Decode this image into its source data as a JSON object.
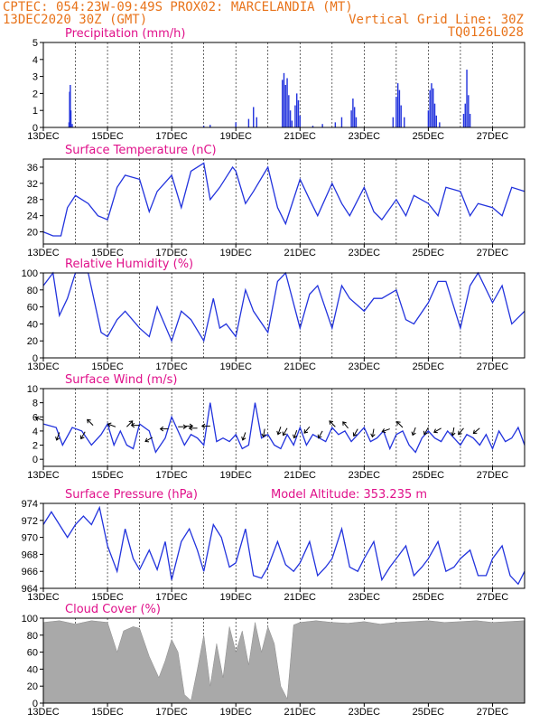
{
  "header": {
    "line1": "CPTEC:  054:23W-09:49S  PROX02: MARCELANDIA (MT)",
    "line2_left": "13DEC2020 30Z (GMT)",
    "line2_right": "Vertical Grid Line: 30Z",
    "line3_right": "TQ0126L028"
  },
  "colors": {
    "header": "#e8731a",
    "title": "#e0108a",
    "line": "#2233dd",
    "bar": "#2233dd",
    "cloud": "#a9a9a9"
  },
  "date_labels": [
    "13DEC",
    "15DEC",
    "17DEC",
    "19DEC",
    "21DEC",
    "23DEC",
    "25DEC",
    "27DEC"
  ],
  "model_altitude": "Model Altitude: 353.235 m",
  "panels": [
    {
      "id": "precip",
      "title": "Precipitation (mm/h)",
      "yticks": [
        "5",
        "4",
        "3",
        "2",
        "1",
        "0"
      ],
      "ymin": 0,
      "ymax": 5,
      "chart_data": {
        "type": "bar",
        "title": "Precipitation (mm/h)",
        "ylim": [
          0,
          5
        ],
        "bars": [
          [
            0.8,
            0.3
          ],
          [
            0.82,
            2.1
          ],
          [
            0.84,
            2.5
          ],
          [
            0.86,
            1.0
          ],
          [
            0.9,
            0.2
          ],
          [
            5.0,
            0.1
          ],
          [
            5.2,
            0.15
          ],
          [
            6.0,
            0.3
          ],
          [
            6.4,
            0.5
          ],
          [
            6.55,
            1.2
          ],
          [
            6.65,
            0.6
          ],
          [
            7.45,
            2.8
          ],
          [
            7.5,
            3.2
          ],
          [
            7.55,
            2.5
          ],
          [
            7.6,
            2.9
          ],
          [
            7.65,
            1.9
          ],
          [
            7.7,
            1.0
          ],
          [
            7.75,
            0.4
          ],
          [
            7.85,
            1.3
          ],
          [
            7.9,
            2.0
          ],
          [
            7.95,
            1.6
          ],
          [
            8.0,
            0.7
          ],
          [
            8.4,
            0.1
          ],
          [
            8.7,
            0.2
          ],
          [
            9.1,
            0.3
          ],
          [
            9.3,
            0.6
          ],
          [
            9.6,
            1.0
          ],
          [
            9.65,
            1.7
          ],
          [
            9.7,
            1.2
          ],
          [
            9.75,
            0.6
          ],
          [
            10.9,
            0.6
          ],
          [
            11.0,
            1.8
          ],
          [
            11.05,
            2.6
          ],
          [
            11.1,
            2.2
          ],
          [
            11.15,
            1.3
          ],
          [
            11.25,
            0.6
          ],
          [
            12.0,
            1.0
          ],
          [
            12.05,
            2.2
          ],
          [
            12.1,
            2.6
          ],
          [
            12.15,
            2.3
          ],
          [
            12.2,
            1.4
          ],
          [
            12.25,
            0.7
          ],
          [
            12.35,
            0.3
          ],
          [
            13.1,
            0.8
          ],
          [
            13.15,
            1.4
          ],
          [
            13.2,
            3.4
          ],
          [
            13.25,
            1.9
          ],
          [
            13.3,
            0.8
          ]
        ]
      }
    },
    {
      "id": "temperature",
      "title": "Surface Temperature (nC)",
      "yticks": [
        "36",
        "32",
        "28",
        "24",
        "20"
      ],
      "ymin": 17,
      "ymax": 38,
      "chart_data": {
        "type": "line",
        "title": "Surface Temperature (nC)",
        "ylim": [
          17,
          38
        ],
        "x": [
          0,
          0.3,
          0.55,
          0.75,
          1.0,
          1.4,
          1.7,
          2.0,
          2.3,
          2.55,
          3.0,
          3.3,
          3.55,
          4.0,
          4.3,
          4.6,
          5.0,
          5.2,
          5.5,
          5.9,
          6.0,
          6.3,
          6.55,
          7.0,
          7.3,
          7.55,
          8.0,
          8.3,
          8.55,
          9.0,
          9.3,
          9.55,
          10.0,
          10.3,
          10.55,
          11.0,
          11.3,
          11.55,
          12.0,
          12.3,
          12.55,
          13.0,
          13.3,
          13.55,
          14.0,
          14.3,
          14.6,
          15.0
        ],
        "y": [
          20,
          19,
          19,
          26,
          29,
          27,
          24,
          23,
          31,
          34,
          33,
          25,
          30,
          34,
          26,
          35,
          37,
          28,
          31,
          36,
          35,
          27,
          30,
          36,
          26,
          22,
          33,
          28,
          24,
          32,
          27,
          24,
          31,
          25,
          23,
          28,
          24,
          29,
          27,
          24,
          31,
          30,
          24,
          27,
          26,
          24,
          31,
          30
        ]
      }
    },
    {
      "id": "humidity",
      "title": "Relative Humidity (%)",
      "yticks": [
        "100",
        "80",
        "60",
        "40",
        "20",
        "0"
      ],
      "ymin": 0,
      "ymax": 100,
      "chart_data": {
        "type": "line",
        "title": "Relative Humidity (%)",
        "ylim": [
          0,
          100
        ],
        "x": [
          0,
          0.3,
          0.5,
          0.75,
          1.0,
          1.4,
          1.8,
          2.0,
          2.3,
          2.55,
          3.0,
          3.3,
          3.55,
          4.0,
          4.3,
          4.6,
          5.0,
          5.3,
          5.5,
          5.7,
          6.0,
          6.3,
          6.55,
          7.0,
          7.3,
          7.55,
          8.0,
          8.3,
          8.55,
          9.0,
          9.3,
          9.55,
          10.0,
          10.3,
          10.55,
          11.0,
          11.3,
          11.55,
          12.0,
          12.3,
          12.55,
          13.0,
          13.3,
          13.55,
          14.0,
          14.3,
          14.6,
          15.0
        ],
        "y": [
          85,
          100,
          50,
          70,
          100,
          100,
          30,
          25,
          45,
          55,
          35,
          25,
          60,
          20,
          55,
          45,
          20,
          70,
          35,
          40,
          25,
          80,
          55,
          30,
          90,
          100,
          35,
          75,
          85,
          35,
          85,
          70,
          55,
          70,
          70,
          80,
          45,
          40,
          65,
          90,
          90,
          35,
          85,
          100,
          65,
          85,
          40,
          55
        ]
      }
    },
    {
      "id": "wind",
      "title": "Surface Wind (m/s)",
      "yticks": [
        "10",
        "8",
        "6",
        "4",
        "2",
        "0"
      ],
      "ymin": -1,
      "ymax": 10,
      "chart_data": {
        "type": "line",
        "title": "Surface Wind (m/s)",
        "ylim": [
          -1,
          10
        ],
        "x": [
          0,
          0.4,
          0.6,
          0.9,
          1.2,
          1.5,
          1.8,
          2.0,
          2.2,
          2.4,
          2.6,
          2.8,
          3.0,
          3.3,
          3.5,
          3.8,
          4.0,
          4.2,
          4.4,
          4.6,
          4.8,
          5.0,
          5.2,
          5.4,
          5.6,
          5.8,
          6.0,
          6.2,
          6.4,
          6.6,
          6.8,
          7.0,
          7.2,
          7.4,
          7.6,
          7.8,
          8.0,
          8.2,
          8.4,
          8.6,
          8.8,
          9.0,
          9.2,
          9.4,
          9.6,
          9.8,
          10.0,
          10.2,
          10.4,
          10.6,
          10.8,
          11.0,
          11.2,
          11.4,
          11.6,
          11.8,
          12.0,
          12.2,
          12.4,
          12.6,
          12.8,
          13.0,
          13.2,
          13.4,
          13.6,
          13.8,
          14.0,
          14.2,
          14.4,
          14.6,
          14.8,
          15.0
        ],
        "y": [
          5,
          4.5,
          2,
          4.5,
          4,
          2,
          3.5,
          5,
          2,
          4,
          2,
          1.5,
          5,
          4,
          1,
          3,
          6,
          4,
          2,
          3.5,
          3,
          2,
          8,
          2.5,
          3,
          2.5,
          3.5,
          1.5,
          2,
          8,
          3,
          3.5,
          2,
          1.5,
          3.5,
          2,
          4.5,
          2,
          3.5,
          3,
          2.5,
          4.5,
          3.5,
          4,
          2.5,
          3.5,
          4.5,
          2.5,
          3,
          4,
          1.5,
          3.5,
          4,
          2,
          1,
          3,
          4,
          3,
          2.5,
          4,
          3,
          2,
          3.5,
          3,
          2,
          3.5,
          1.5,
          4,
          2.5,
          3,
          4.5,
          2
        ]
      },
      "arrows": [
        [
          0.0,
          5.5,
          -160
        ],
        [
          0.5,
          3.8,
          110
        ],
        [
          1.3,
          3.9,
          120
        ],
        [
          1.55,
          4.8,
          -135
        ],
        [
          2.25,
          4.6,
          -160
        ],
        [
          2.6,
          4.6,
          -45
        ],
        [
          3.0,
          4.8,
          180
        ],
        [
          3.4,
          3.1,
          150
        ],
        [
          3.9,
          4.3,
          180
        ],
        [
          4.2,
          4.6,
          0
        ],
        [
          4.4,
          4.7,
          0
        ],
        [
          4.8,
          4.4,
          -180
        ],
        [
          5.2,
          4.7,
          180
        ],
        [
          6.3,
          3.8,
          110
        ],
        [
          6.9,
          4.3,
          100
        ],
        [
          7.4,
          4.6,
          110
        ],
        [
          7.6,
          4.4,
          120
        ],
        [
          7.9,
          4.1,
          110
        ],
        [
          8.3,
          4.6,
          130
        ],
        [
          8.7,
          4.0,
          120
        ],
        [
          9.1,
          4.6,
          -135
        ],
        [
          9.5,
          4.4,
          -130
        ],
        [
          9.8,
          4.3,
          120
        ],
        [
          10.3,
          4.3,
          100
        ],
        [
          10.8,
          4.3,
          160
        ],
        [
          11.2,
          4.5,
          -135
        ],
        [
          11.6,
          4.5,
          110
        ],
        [
          12.0,
          4.5,
          120
        ],
        [
          12.4,
          4.4,
          150
        ],
        [
          12.8,
          4.5,
          100
        ],
        [
          13.1,
          4.4,
          130
        ],
        [
          13.6,
          4.4,
          140
        ]
      ]
    },
    {
      "id": "pressure",
      "title": "Surface Pressure (hPa)",
      "yticks": [
        "974",
        "972",
        "970",
        "968",
        "966",
        "964"
      ],
      "ymin": 964,
      "ymax": 974,
      "chart_data": {
        "type": "line",
        "title": "Surface Pressure (hPa)",
        "ylim": [
          964,
          974
        ],
        "x": [
          0,
          0.25,
          0.5,
          0.75,
          1.0,
          1.25,
          1.5,
          1.75,
          2.0,
          2.3,
          2.55,
          2.8,
          3.0,
          3.3,
          3.55,
          3.8,
          4.0,
          4.3,
          4.55,
          4.8,
          5.0,
          5.3,
          5.55,
          5.8,
          6.0,
          6.3,
          6.55,
          6.8,
          7.0,
          7.3,
          7.55,
          7.8,
          8.0,
          8.3,
          8.55,
          8.8,
          9.0,
          9.3,
          9.55,
          9.8,
          10.0,
          10.3,
          10.55,
          10.8,
          11.0,
          11.3,
          11.55,
          11.8,
          12.0,
          12.3,
          12.55,
          12.8,
          13.0,
          13.3,
          13.55,
          13.8,
          14.0,
          14.3,
          14.55,
          14.8,
          15.0
        ],
        "y": [
          971.5,
          973,
          971.5,
          970,
          971.5,
          972.5,
          971.5,
          973.5,
          969,
          966,
          971,
          967.5,
          966.2,
          968.5,
          966.2,
          969.5,
          965,
          969.5,
          971,
          968.5,
          966,
          971.5,
          970,
          966.5,
          967,
          971,
          965.5,
          965.2,
          966.5,
          969.5,
          966.8,
          966,
          967,
          969.5,
          965.5,
          966.5,
          967.5,
          971,
          966.5,
          966,
          967.5,
          969.5,
          965,
          966.5,
          967.5,
          969,
          965.5,
          966.5,
          967.5,
          969.5,
          966,
          966.5,
          967.5,
          968.5,
          965.5,
          965.5,
          967.5,
          969,
          965.5,
          964.5,
          966
        ]
      }
    },
    {
      "id": "cloud",
      "title": "Cloud Cover (%)",
      "yticks": [
        "100",
        "80",
        "60",
        "40",
        "20",
        "0"
      ],
      "ymin": 0,
      "ymax": 100,
      "chart_data": {
        "type": "area",
        "title": "Cloud Cover (%)",
        "ylim": [
          0,
          100
        ],
        "x": [
          0,
          0.5,
          1.0,
          1.5,
          2.0,
          2.3,
          2.5,
          2.8,
          3.0,
          3.3,
          3.6,
          3.8,
          4.0,
          4.2,
          4.4,
          4.6,
          4.8,
          5.0,
          5.2,
          5.4,
          5.6,
          5.8,
          6.0,
          6.2,
          6.4,
          6.6,
          6.8,
          7.0,
          7.2,
          7.4,
          7.6,
          7.8,
          8.0,
          8.5,
          9.0,
          9.5,
          10.0,
          10.5,
          11.0,
          11.5,
          12.0,
          12.5,
          13.0,
          13.5,
          14.0,
          14.5,
          15.0
        ],
        "y": [
          95,
          97,
          93,
          97,
          95,
          60,
          85,
          90,
          88,
          55,
          30,
          50,
          75,
          60,
          10,
          3,
          40,
          80,
          20,
          70,
          30,
          90,
          60,
          85,
          45,
          95,
          60,
          90,
          70,
          20,
          5,
          92,
          95,
          97,
          95,
          94,
          96,
          93,
          95,
          96,
          97,
          95,
          96,
          97,
          95,
          96,
          97
        ]
      }
    }
  ]
}
